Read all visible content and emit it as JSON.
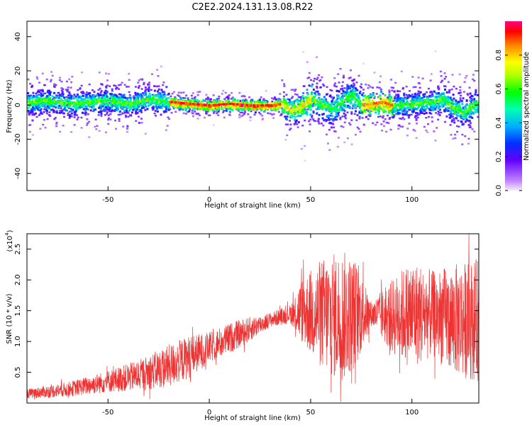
{
  "title": "C2E2.2024.131.13.08.R22",
  "colors": {
    "trace": "#ee3333",
    "axis": "#000000"
  },
  "chart_data": [
    {
      "type": "heatmap",
      "name": "spectrogram",
      "xlabel": "Height of straight line (km)",
      "ylabel": "Frequency (Hz)",
      "xlim": [
        -90,
        133
      ],
      "ylim": [
        -50,
        49
      ],
      "xticks": [
        -50,
        0,
        50,
        100
      ],
      "yticks": [
        -40,
        -20,
        0,
        20,
        40
      ],
      "ridge": [
        {
          "x": -90,
          "f": 2
        },
        {
          "x": -80,
          "f": 3
        },
        {
          "x": -70,
          "f": 1
        },
        {
          "x": -60,
          "f": 2
        },
        {
          "x": -50,
          "f": 3
        },
        {
          "x": -40,
          "f": 1
        },
        {
          "x": -30,
          "f": 4
        },
        {
          "x": -20,
          "f": 2
        },
        {
          "x": -10,
          "f": 1
        },
        {
          "x": 0,
          "f": 0
        },
        {
          "x": 10,
          "f": 1
        },
        {
          "x": 20,
          "f": 0
        },
        {
          "x": 30,
          "f": 0
        },
        {
          "x": 36,
          "f": 1
        },
        {
          "x": 40,
          "f": -3
        },
        {
          "x": 45,
          "f": -1
        },
        {
          "x": 50,
          "f": 4
        },
        {
          "x": 55,
          "f": 1
        },
        {
          "x": 60,
          "f": -2
        },
        {
          "x": 65,
          "f": 2
        },
        {
          "x": 70,
          "f": 6
        },
        {
          "x": 75,
          "f": 0
        },
        {
          "x": 80,
          "f": 1
        },
        {
          "x": 85,
          "f": 2
        },
        {
          "x": 90,
          "f": 0
        },
        {
          "x": 100,
          "f": 1
        },
        {
          "x": 110,
          "f": 2
        },
        {
          "x": 115,
          "f": 4
        },
        {
          "x": 120,
          "f": -1
        },
        {
          "x": 125,
          "f": -4
        },
        {
          "x": 133,
          "f": 2
        }
      ],
      "colorbar": {
        "label": "Normalized spectral amplitude",
        "range": [
          0,
          1
        ],
        "ticks": [
          "0.0",
          "0.2",
          "0.4",
          "0.6",
          "0.8"
        ]
      }
    },
    {
      "type": "line",
      "name": "snr",
      "xlabel": "Height of straight line (km)",
      "ylabel": "SNR (10 * v/v)",
      "multiplier": "(x10",
      "multiplier_exp": "4",
      "multiplier_close": ")",
      "xlim": [
        -90,
        133
      ],
      "ylim": [
        0,
        2.75
      ],
      "xticks": [
        -50,
        0,
        50,
        100
      ],
      "yticks": [
        "0.5",
        "1.0",
        "1.5",
        "2.0",
        "2.5"
      ],
      "envelope": [
        {
          "x": -90,
          "mean": 0.15,
          "amp": 0.08
        },
        {
          "x": -70,
          "mean": 0.22,
          "amp": 0.12
        },
        {
          "x": -50,
          "mean": 0.35,
          "amp": 0.18
        },
        {
          "x": -35,
          "mean": 0.45,
          "amp": 0.25
        },
        {
          "x": -20,
          "mean": 0.6,
          "amp": 0.35
        },
        {
          "x": -10,
          "mean": 0.75,
          "amp": 0.35
        },
        {
          "x": 0,
          "mean": 0.9,
          "amp": 0.25
        },
        {
          "x": 10,
          "mean": 1.05,
          "amp": 0.25
        },
        {
          "x": 20,
          "mean": 1.2,
          "amp": 0.2
        },
        {
          "x": 30,
          "mean": 1.35,
          "amp": 0.12
        },
        {
          "x": 40,
          "mean": 1.45,
          "amp": 0.15
        },
        {
          "x": 45,
          "mean": 1.5,
          "amp": 0.5
        },
        {
          "x": 55,
          "mean": 1.45,
          "amp": 0.9
        },
        {
          "x": 65,
          "mean": 1.4,
          "amp": 1.1
        },
        {
          "x": 72,
          "mean": 1.45,
          "amp": 0.9
        },
        {
          "x": 80,
          "mean": 1.45,
          "amp": 0.2
        },
        {
          "x": 90,
          "mean": 1.4,
          "amp": 0.6
        },
        {
          "x": 100,
          "mean": 1.45,
          "amp": 0.9
        },
        {
          "x": 110,
          "mean": 1.45,
          "amp": 0.7
        },
        {
          "x": 120,
          "mean": 1.35,
          "amp": 0.9
        },
        {
          "x": 133,
          "mean": 1.35,
          "amp": 1.0
        }
      ]
    }
  ]
}
